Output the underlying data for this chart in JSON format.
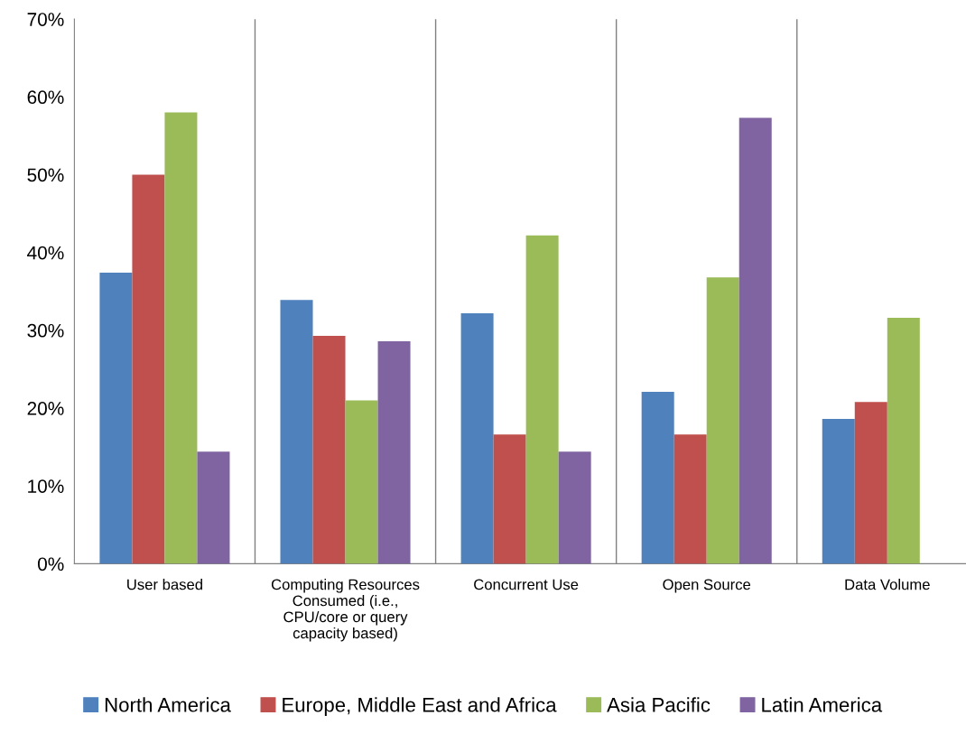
{
  "chart_data": {
    "type": "bar",
    "categories": [
      "User based",
      "Computing Resources\nConsumed (i.e.,\nCPU/core or query\ncapacity based)",
      "Concurrent Use",
      "Open Source",
      "Data Volume"
    ],
    "series": [
      {
        "name": "North America",
        "color": "#4f81bd",
        "values": [
          37.4,
          33.9,
          32.2,
          22.1,
          18.6
        ]
      },
      {
        "name": "Europe, Middle East and Africa",
        "color": "#c0504d",
        "values": [
          50.0,
          29.3,
          16.6,
          16.6,
          20.8
        ]
      },
      {
        "name": "Asia Pacific",
        "color": "#9bbb59",
        "values": [
          58.0,
          21.0,
          42.2,
          36.8,
          31.6
        ]
      },
      {
        "name": "Latin America",
        "color": "#8064a2",
        "values": [
          14.4,
          28.6,
          14.4,
          57.3,
          null
        ]
      }
    ],
    "ylim": [
      0,
      70
    ],
    "yticks": [
      {
        "value": 0,
        "label": "0%"
      },
      {
        "value": 10,
        "label": "10%"
      },
      {
        "value": 20,
        "label": "20%"
      },
      {
        "value": 30,
        "label": "30%"
      },
      {
        "value": 40,
        "label": "40%"
      },
      {
        "value": 50,
        "label": "50%"
      },
      {
        "value": 60,
        "label": "60%"
      },
      {
        "value": 70,
        "label": "70%"
      }
    ],
    "grid": "x",
    "legend": "bottom"
  }
}
